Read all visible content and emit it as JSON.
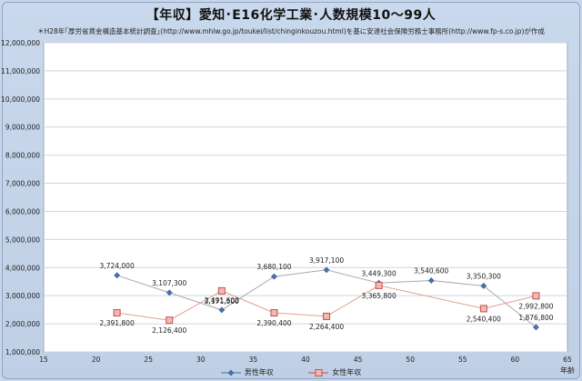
{
  "chart_data": {
    "type": "line",
    "title": "【年収】愛知･E16化学工業･人数規模10～99人",
    "note": "＊H28年｢厚労省賃金構造基本統計調査｣(http://www.mhlw.go.jp/toukei/list/chinginkouzou.html)を基に安達社会保険労務士事務所(http://www.fp-s.co.jp)が作成",
    "xlabel": "年齢",
    "ylabel": "",
    "xlim": [
      15,
      65
    ],
    "ylim": [
      1000000,
      12000000
    ],
    "x_ticks": [
      15,
      20,
      25,
      30,
      35,
      40,
      45,
      50,
      55,
      60,
      65
    ],
    "y_ticks": [
      1000000,
      2000000,
      3000000,
      4000000,
      5000000,
      6000000,
      7000000,
      8000000,
      9000000,
      10000000,
      11000000,
      12000000
    ],
    "y_tick_labels": [
      "1,000,000",
      "2,000,000",
      "3,000,000",
      "4,000,000",
      "5,000,000",
      "6,000,000",
      "7,000,000",
      "8,000,000",
      "9,000,000",
      "10,000,000",
      "11,000,000",
      "12,000,000"
    ],
    "grid": true,
    "legend_position": "bottom",
    "series": [
      {
        "name": "男性年収",
        "color": "#4a6ea8",
        "marker": "diamond",
        "x": [
          22,
          27,
          32,
          37,
          42,
          47,
          52,
          57,
          62
        ],
        "values": [
          3724000,
          3107300,
          2491600,
          3680100,
          3917100,
          3449300,
          3540600,
          3350300,
          1876800
        ],
        "labels": [
          "3,724,000",
          "3,107,300",
          "2,491,600",
          "3,680,100",
          "3,917,100",
          "3,449,300",
          "3,540,600",
          "3,350,300",
          "1,876,800"
        ]
      },
      {
        "name": "女性年収",
        "color": "#c0504d",
        "marker": "square",
        "x": [
          22,
          27,
          32,
          37,
          42,
          47,
          57,
          62
        ],
        "values": [
          2391800,
          2126400,
          3171500,
          2390400,
          2264400,
          3365800,
          2540400,
          2992800
        ],
        "labels": [
          "2,391,800",
          "2,126,400",
          "3,171,500",
          "2,390,400",
          "2,264,400",
          "3,365,800",
          "2,540,400",
          "2,992,800"
        ]
      }
    ]
  }
}
